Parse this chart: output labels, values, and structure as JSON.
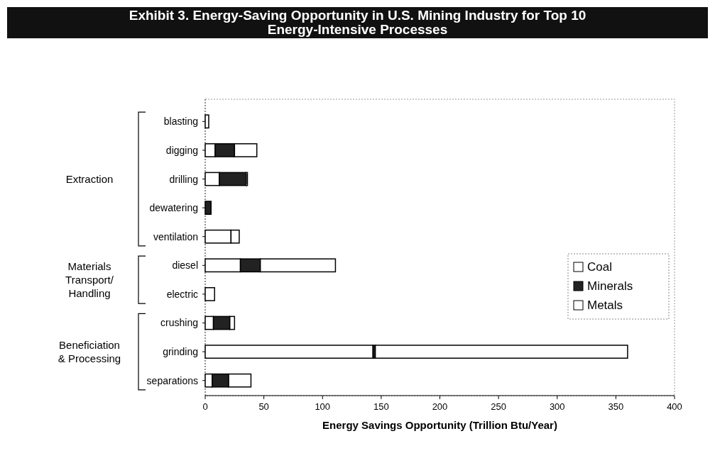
{
  "chart_data": {
    "type": "bar",
    "orientation": "horizontal",
    "stacked": true,
    "title": "Exhibit 3. Energy-Saving Opportunity in U.S. Mining Industry for Top 10\nEnergy-Intensive Processes",
    "xlabel": "Energy Savings Opportunity (Trillion Btu/Year)",
    "categories": [
      "blasting",
      "digging",
      "drilling",
      "dewatering",
      "ventilation",
      "diesel",
      "electric",
      "crushing",
      "grinding",
      "separations"
    ],
    "series": [
      {
        "name": "Coal",
        "color": "#ffffff",
        "values": [
          3,
          8.5,
          12,
          0,
          22,
          30,
          8,
          7,
          143,
          6
        ]
      },
      {
        "name": "Minerals",
        "color": "#222222",
        "values": [
          0,
          16.5,
          23,
          5,
          0,
          17,
          0,
          14,
          2,
          14
        ]
      },
      {
        "name": "Metals",
        "color": "#ffffff",
        "values": [
          0,
          19,
          1,
          0,
          7,
          64,
          0,
          4,
          215,
          19
        ]
      }
    ],
    "xlim": [
      0,
      400
    ],
    "xticks": [
      0,
      50,
      100,
      150,
      200,
      250,
      300,
      350,
      400
    ],
    "legend": "right",
    "annotations": [
      "Extraction",
      "Materials\nTransport/\nHandling",
      "Beneficiation\n& Processing"
    ]
  }
}
